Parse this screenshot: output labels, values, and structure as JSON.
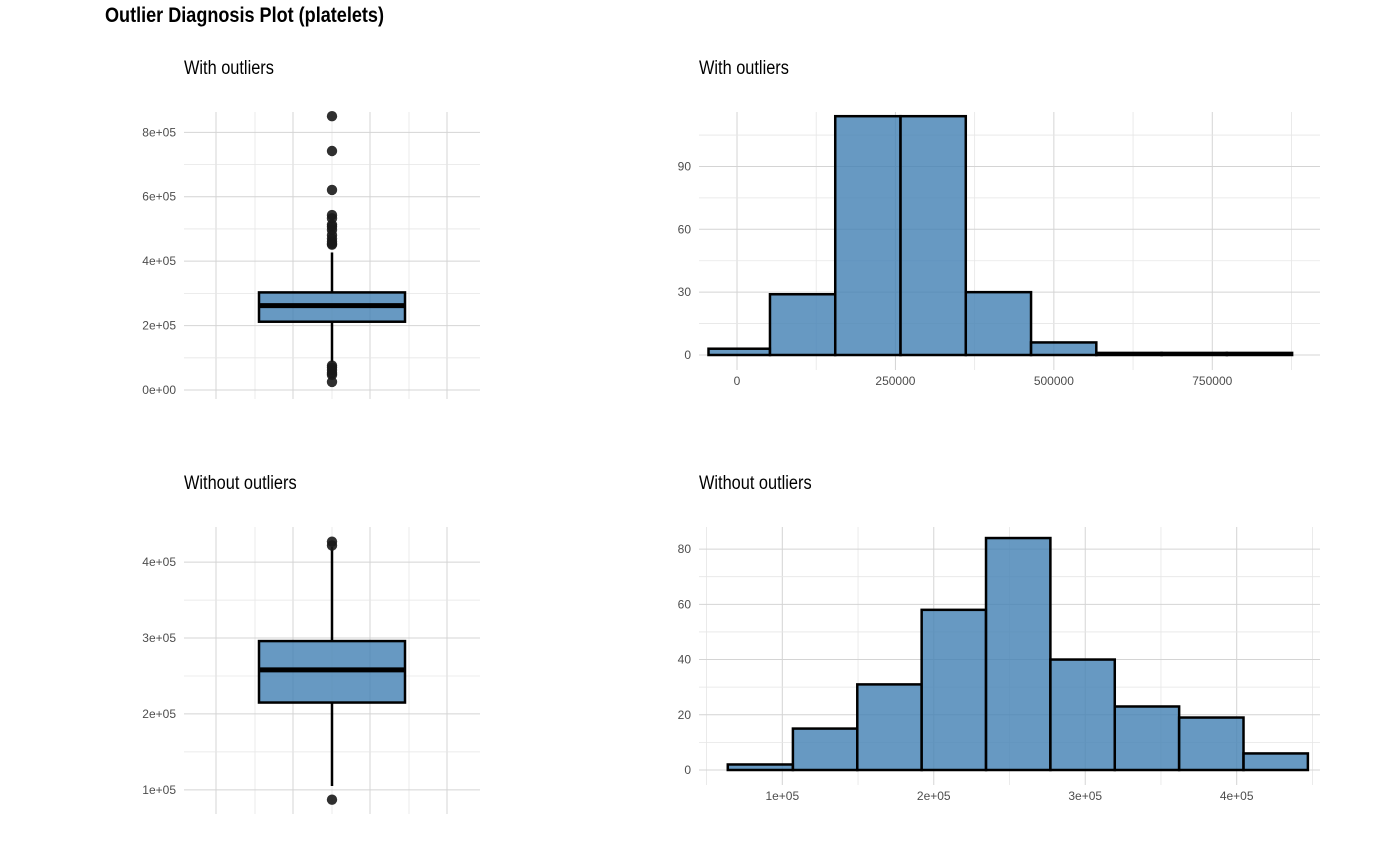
{
  "title": "Outlier Diagnosis Plot (platelets)",
  "colors": {
    "fill": "#4682b4",
    "stroke": "#000000",
    "grid": "#d4d4d4",
    "point": "#1a1a1a"
  },
  "chart_data": [
    {
      "type": "box",
      "panel": "top-left",
      "title": "With outliers",
      "ylim": [
        0,
        860000
      ],
      "ticks": [
        0,
        200000,
        400000,
        600000,
        800000
      ],
      "tick_labels": [
        "0e+00",
        "2e+05",
        "4e+05",
        "6e+05",
        "8e+05"
      ],
      "box": {
        "q1": 212000,
        "median": 262000,
        "q3": 303000,
        "whisker_low": 87000,
        "whisker_high": 427000
      },
      "outliers": [
        850000,
        742000,
        621000,
        543000,
        533000,
        513000,
        507000,
        497000,
        481000,
        470000,
        461000,
        454000,
        451000,
        76000,
        70000,
        62000,
        53000,
        47000,
        25100
      ],
      "grid": true
    },
    {
      "type": "bar",
      "panel": "top-right",
      "title": "With outliers",
      "xlim": [
        -60000,
        920000
      ],
      "ylim": [
        0,
        116
      ],
      "x_ticks": [
        0,
        250000,
        500000,
        750000
      ],
      "x_tick_labels": [
        "0",
        "250000",
        "500000",
        "750000"
      ],
      "y_ticks": [
        0,
        30,
        60,
        90
      ],
      "y_tick_labels": [
        "0",
        "30",
        "60",
        "90"
      ],
      "bins": [
        {
          "x0": -45000,
          "x1": 52000,
          "count": 3
        },
        {
          "x0": 52000,
          "x1": 155000,
          "count": 29
        },
        {
          "x0": 155000,
          "x1": 258000,
          "count": 114
        },
        {
          "x0": 258000,
          "x1": 361000,
          "count": 114
        },
        {
          "x0": 361000,
          "x1": 464000,
          "count": 30
        },
        {
          "x0": 464000,
          "x1": 567000,
          "count": 6
        },
        {
          "x0": 567000,
          "x1": 670000,
          "count": 1
        },
        {
          "x0": 670000,
          "x1": 773000,
          "count": 1
        },
        {
          "x0": 773000,
          "x1": 876000,
          "count": 1
        }
      ],
      "grid": true
    },
    {
      "type": "box",
      "panel": "bottom-left",
      "title": "Without outliers",
      "ylim": [
        80000,
        445000
      ],
      "ticks": [
        100000,
        200000,
        300000,
        400000
      ],
      "tick_labels": [
        "1e+05",
        "2e+05",
        "3e+05",
        "4e+05"
      ],
      "box": {
        "q1": 215000,
        "median": 258000,
        "q3": 296000,
        "whisker_low": 105000,
        "whisker_high": 420000
      },
      "outliers": [
        427000,
        422000,
        87000
      ],
      "grid": true
    },
    {
      "type": "bar",
      "panel": "bottom-right",
      "title": "Without outliers",
      "xlim": [
        45000,
        455000
      ],
      "ylim": [
        0,
        88
      ],
      "x_ticks": [
        100000,
        200000,
        300000,
        400000
      ],
      "x_tick_labels": [
        "1e+05",
        "2e+05",
        "3e+05",
        "4e+05"
      ],
      "y_ticks": [
        0,
        20,
        40,
        60,
        80
      ],
      "y_tick_labels": [
        "0",
        "20",
        "40",
        "60",
        "80"
      ],
      "bins": [
        {
          "x0": 64000,
          "x1": 107000,
          "count": 2
        },
        {
          "x0": 107000,
          "x1": 149500,
          "count": 15
        },
        {
          "x0": 149500,
          "x1": 192000,
          "count": 31
        },
        {
          "x0": 192000,
          "x1": 234500,
          "count": 58
        },
        {
          "x0": 234500,
          "x1": 277000,
          "count": 84
        },
        {
          "x0": 277000,
          "x1": 319500,
          "count": 40
        },
        {
          "x0": 319500,
          "x1": 362000,
          "count": 23
        },
        {
          "x0": 362000,
          "x1": 404500,
          "count": 19
        },
        {
          "x0": 404500,
          "x1": 447000,
          "count": 6
        }
      ],
      "grid": true
    }
  ]
}
